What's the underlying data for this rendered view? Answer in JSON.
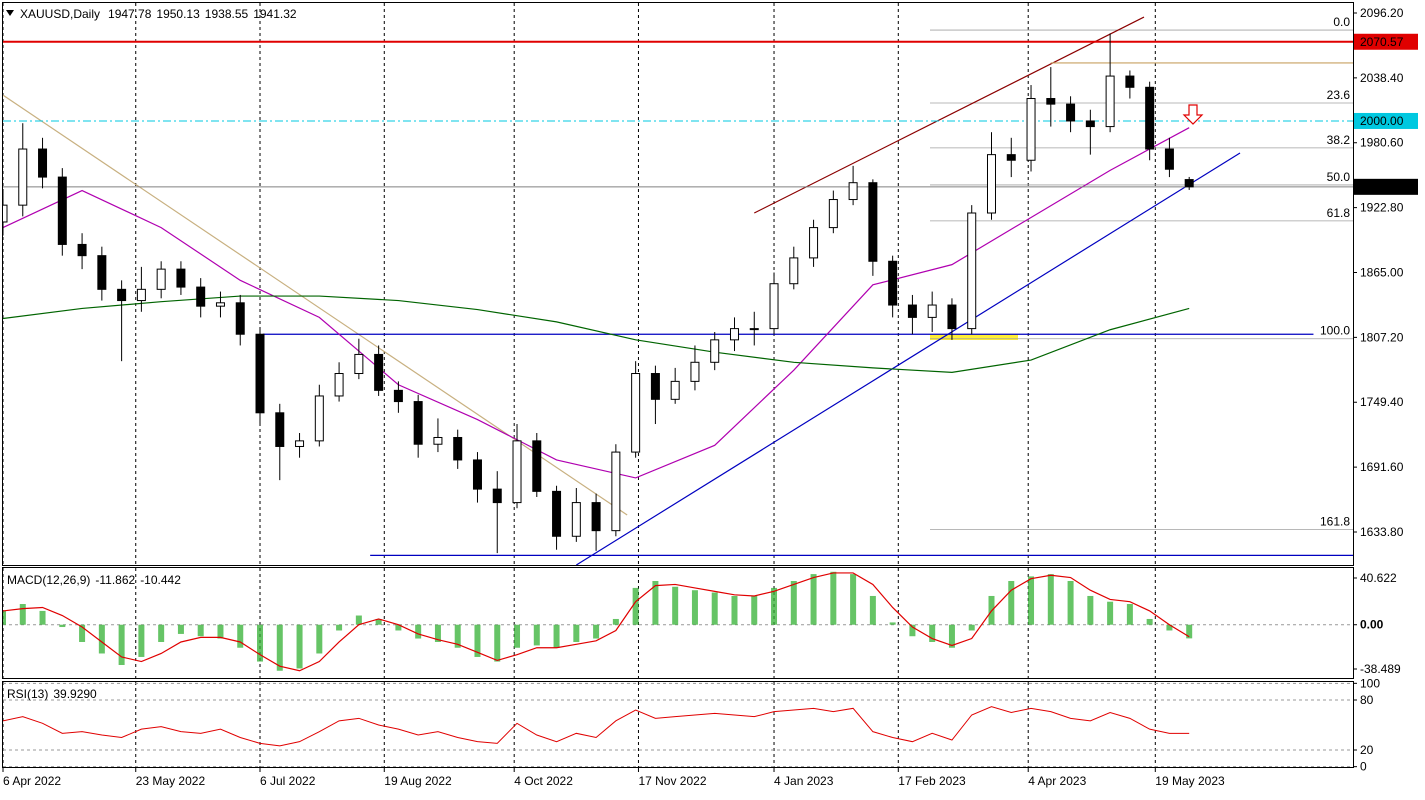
{
  "chart_data": {
    "type": "candlestick",
    "symbol": "XAUUSD,Daily",
    "x": [
      "2022-04-06",
      "2022-04-13",
      "2022-04-20",
      "2022-04-27",
      "2022-05-04",
      "2022-05-11",
      "2022-05-18",
      "2022-05-25",
      "2022-06-01",
      "2022-06-08",
      "2022-06-15",
      "2022-06-22",
      "2022-06-29",
      "2022-07-06",
      "2022-07-13",
      "2022-07-20",
      "2022-07-27",
      "2022-08-03",
      "2022-08-10",
      "2022-08-17",
      "2022-08-24",
      "2022-08-31",
      "2022-09-07",
      "2022-09-14",
      "2022-09-21",
      "2022-09-28",
      "2022-10-05",
      "2022-10-12",
      "2022-10-19",
      "2022-10-26",
      "2022-11-02",
      "2022-11-09",
      "2022-11-16",
      "2022-11-23",
      "2022-11-30",
      "2022-12-07",
      "2022-12-14",
      "2022-12-21",
      "2022-12-28",
      "2023-01-04",
      "2023-01-11",
      "2023-01-18",
      "2023-01-25",
      "2023-02-01",
      "2023-02-08",
      "2023-02-15",
      "2023-02-22",
      "2023-03-01",
      "2023-03-08",
      "2023-03-15",
      "2023-03-22",
      "2023-03-29",
      "2023-04-05",
      "2023-04-12",
      "2023-04-19",
      "2023-04-26",
      "2023-05-03",
      "2023-05-10",
      "2023-05-17",
      "2023-05-24",
      "2023-05-31"
    ],
    "open": [
      1910,
      1925,
      1975,
      1950,
      1890,
      1880,
      1850,
      1840,
      1850,
      1868,
      1852,
      1835,
      1838,
      1810,
      1740,
      1710,
      1715,
      1755,
      1775,
      1792,
      1760,
      1750,
      1712,
      1718,
      1698,
      1672,
      1660,
      1715,
      1670,
      1630,
      1660,
      1635,
      1705,
      1775,
      1752,
      1768,
      1785,
      1805,
      1815,
      1815,
      1855,
      1878,
      1905,
      1930,
      1945,
      1875,
      1836,
      1825,
      1836,
      1815,
      1918,
      1970,
      1965,
      2020,
      2015,
      2000,
      1995,
      2040,
      2030,
      1975,
      1947.78
    ],
    "high": [
      1938,
      1998,
      1985,
      1958,
      1900,
      1888,
      1858,
      1870,
      1875,
      1875,
      1860,
      1848,
      1845,
      1815,
      1748,
      1722,
      1765,
      1785,
      1806,
      1800,
      1768,
      1756,
      1735,
      1725,
      1705,
      1688,
      1730,
      1722,
      1675,
      1673,
      1668,
      1712,
      1786,
      1782,
      1780,
      1800,
      1812,
      1825,
      1830,
      1865,
      1888,
      1912,
      1938,
      1960,
      1948,
      1880,
      1845,
      1848,
      1842,
      1925,
      1990,
      1985,
      2032,
      2048,
      2022,
      2010,
      2078,
      2045,
      2035,
      1985,
      1950.13
    ],
    "low": [
      1898,
      1915,
      1940,
      1880,
      1868,
      1840,
      1786,
      1830,
      1842,
      1845,
      1825,
      1825,
      1800,
      1730,
      1680,
      1700,
      1710,
      1750,
      1770,
      1755,
      1740,
      1700,
      1705,
      1690,
      1660,
      1615,
      1655,
      1665,
      1618,
      1625,
      1617,
      1630,
      1700,
      1730,
      1748,
      1760,
      1778,
      1795,
      1800,
      1810,
      1850,
      1870,
      1900,
      1925,
      1862,
      1825,
      1810,
      1812,
      1805,
      1810,
      1912,
      1950,
      1955,
      1995,
      1990,
      1970,
      1990,
      2020,
      1965,
      1950,
      1938.55
    ],
    "close": [
      1925,
      1975,
      1950,
      1890,
      1880,
      1850,
      1840,
      1850,
      1868,
      1852,
      1835,
      1838,
      1810,
      1740,
      1710,
      1715,
      1755,
      1775,
      1792,
      1760,
      1750,
      1712,
      1718,
      1698,
      1672,
      1660,
      1715,
      1670,
      1630,
      1660,
      1635,
      1705,
      1775,
      1752,
      1768,
      1785,
      1805,
      1815,
      1815,
      1855,
      1878,
      1905,
      1930,
      1945,
      1875,
      1836,
      1825,
      1836,
      1815,
      1918,
      1970,
      1965,
      2020,
      2015,
      2000,
      1995,
      2040,
      2030,
      1975,
      1957,
      1941.32
    ],
    "up_color": "#ffffff",
    "down_color": "#000000",
    "xlim": [
      "2022-04-06",
      "2023-07-28"
    ],
    "xticks": [
      "6 Apr 2022",
      "23 May 2022",
      "6 Jul 2022",
      "19 Aug 2022",
      "4 Oct 2022",
      "17 Nov 2022",
      "4 Jan 2023",
      "17 Feb 2023",
      "4 Apr 2023",
      "19 May 2023"
    ],
    "ylim": [
      1604.4,
      2105.1
    ],
    "yticks": [
      {
        "value": 2096.2,
        "label": "2096.20"
      },
      {
        "value": 2038.4,
        "label": "2038.40"
      },
      {
        "value": 1980.6,
        "label": "1980.60"
      },
      {
        "value": 1922.8,
        "label": "1922.80"
      },
      {
        "value": 1865,
        "label": "1865.00"
      },
      {
        "value": 1807.2,
        "label": "1807.20"
      },
      {
        "value": 1749.4,
        "label": "1749.40"
      },
      {
        "value": 1691.6,
        "label": "1691.60"
      },
      {
        "value": 1633.8,
        "label": "1633.80"
      }
    ],
    "grid": true,
    "moving_averages": [
      {
        "color": "#b000b0",
        "x": [
          "2022-04-06",
          "2022-05-04",
          "2022-06-01",
          "2022-06-29",
          "2022-07-27",
          "2022-08-24",
          "2022-09-21",
          "2022-10-19",
          "2022-11-16",
          "2022-12-14",
          "2023-01-11",
          "2023-02-08",
          "2023-03-08",
          "2023-04-05",
          "2023-05-03",
          "2023-05-31"
        ],
        "values": [
          1905,
          1938,
          1905,
          1858,
          1825,
          1765,
          1734,
          1698,
          1682,
          1711,
          1778,
          1854,
          1872,
          1914,
          1956,
          1994
        ]
      },
      {
        "color": "#006400",
        "x": [
          "2022-04-06",
          "2022-05-04",
          "2022-06-01",
          "2022-06-29",
          "2022-07-27",
          "2022-08-24",
          "2022-09-21",
          "2022-10-19",
          "2022-11-16",
          "2022-12-14",
          "2023-01-11",
          "2023-02-08",
          "2023-03-08",
          "2023-04-05",
          "2023-05-03",
          "2023-05-31"
        ],
        "values": [
          1824,
          1833,
          1839,
          1844,
          1844,
          1840,
          1832,
          1821,
          1805,
          1794,
          1785,
          1780,
          1776,
          1787,
          1814,
          1833
        ]
      }
    ],
    "levels": [
      {
        "value": 2070.57,
        "color": "#e00000",
        "dashed": false
      },
      {
        "value": {
          "value": 2000,
          "label": "2000.00"
        },
        "color": "#00c8e0",
        "dashed": true
      }
    ],
    "fibonacci": [
      {
        "level": {
          "value": 0,
          "label": "0.0"
        },
        "price": 2081
      },
      {
        "level": 23.6,
        "price": 2016
      },
      {
        "level": 38.2,
        "price": 1976
      },
      {
        "level": {
          "value": 50,
          "label": "50.0"
        },
        "price": 1943
      },
      {
        "level": 61.8,
        "price": 1911
      },
      {
        "level": {
          "value": 100,
          "label": "100.0"
        },
        "price": 1806
      },
      {
        "level": 161.8,
        "price": 1636
      }
    ],
    "trendlines": [
      {
        "color": "#8b0000",
        "from": [
          "2022-12-28",
          1918
        ],
        "to": [
          "2023-05-15",
          2092.6
        ]
      },
      {
        "color": "#0000c0",
        "from": [
          "2022-10-26",
          1604.4
        ],
        "to": [
          "2023-06-18",
          1971.5
        ]
      },
      {
        "color": "#c8b080",
        "from": [
          "2022-04-06",
          2023
        ],
        "to": [
          "2022-11-13",
          1649
        ]
      },
      {
        "color": "#0000c0",
        "from": [
          "2022-08-14",
          1613
        ],
        "to": [
          "2023-07-28",
          1613
        ]
      },
      {
        "color": "#0000c0",
        "from": [
          "2022-07-07",
          1810
        ],
        "to": [
          "2023-07-14",
          1810
        ]
      },
      {
        "color": "#c8a060",
        "from": [
          "2023-04-12",
          2051.7
        ],
        "to": [
          "2023-07-28",
          2051.7
        ]
      }
    ],
    "macd": {
      "title": "MACD(12,26,9)",
      "histogram": [
        12,
        18,
        12,
        -2,
        -15,
        -25,
        -35,
        -28,
        -15,
        -8,
        -10,
        -12,
        -20,
        -32,
        -40,
        -38,
        -25,
        -5,
        8,
        5,
        -5,
        -12,
        -15,
        -20,
        -28,
        -32,
        -20,
        -18,
        -20,
        -15,
        -12,
        5,
        32,
        38,
        33,
        30,
        28,
        25,
        25,
        32,
        38,
        44,
        46,
        44,
        25,
        2,
        -10,
        -15,
        -20,
        -5,
        25,
        38,
        42,
        44,
        38,
        25,
        20,
        18,
        5,
        -5,
        -11.862
      ],
      "signal": [
        12,
        14,
        15,
        8,
        -2,
        -15,
        -28,
        -32,
        -25,
        -15,
        -11,
        -11,
        -15,
        -26,
        -36,
        -40,
        -32,
        -15,
        0,
        5,
        0,
        -8,
        -13,
        -17,
        -24,
        -31,
        -26,
        -20,
        -20,
        -17,
        -14,
        -5,
        20,
        34,
        35,
        32,
        29,
        26,
        25,
        29,
        35,
        41,
        45,
        45,
        35,
        15,
        -2,
        -12,
        -18,
        -12,
        12,
        30,
        40,
        43,
        41,
        30,
        22,
        20,
        12,
        0,
        -10.442
      ],
      "hist_color": "#33b033",
      "signal_color": "#e00000",
      "ylim": [
        -46.3,
        49.3
      ],
      "yticks": [
        40.622,
        {
          "value": 0,
          "label": "0.00"
        },
        -38.489
      ]
    },
    "rsi": {
      "title": "RSI(13)",
      "color": "#e00000",
      "values": [
        55,
        60,
        52,
        40,
        42,
        38,
        35,
        45,
        48,
        42,
        40,
        45,
        35,
        28,
        25,
        30,
        42,
        55,
        58,
        50,
        45,
        38,
        42,
        35,
        30,
        28,
        52,
        38,
        30,
        40,
        35,
        55,
        68,
        58,
        60,
        62,
        64,
        62,
        60,
        66,
        68,
        70,
        66,
        70,
        42,
        35,
        30,
        40,
        32,
        62,
        72,
        65,
        70,
        66,
        58,
        55,
        65,
        58,
        45,
        40,
        {
          "value": 39.929,
          "label": "39.9290"
        }
      ],
      "ylim": [
        -0.4,
        101.6
      ],
      "yticks": [
        100,
        80,
        20,
        0
      ]
    }
  }
}
